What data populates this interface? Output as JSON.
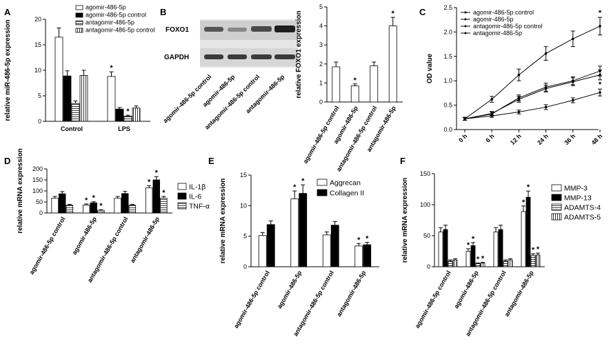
{
  "panel_labels": {
    "A": "A",
    "B": "B",
    "C": "C",
    "D": "D",
    "E": "E",
    "F": "F"
  },
  "chart_data": [
    {
      "id": "A",
      "type": "bar",
      "ylabel": "relative miR-486-5p expression",
      "ylim": [
        0,
        20
      ],
      "yticks": [
        0,
        5,
        10,
        15,
        20
      ],
      "categories": [
        "Control",
        "LPS"
      ],
      "series": [
        {
          "name": "agomir-486-5p",
          "values": [
            16.5,
            8.8
          ],
          "errors": [
            1.8,
            0.9
          ],
          "pattern": "white",
          "star": [
            false,
            true
          ]
        },
        {
          "name": "agomir-486-5p control",
          "values": [
            8.9,
            2.4
          ],
          "errors": [
            1.0,
            0.3
          ],
          "pattern": "black",
          "star": [
            false,
            false
          ]
        },
        {
          "name": "antagomir-486-5p",
          "values": [
            3.5,
            1.0
          ],
          "errors": [
            0.5,
            0.2
          ],
          "pattern": "hstripe",
          "star": [
            false,
            true
          ]
        },
        {
          "name": "antagomir-486-5p control",
          "values": [
            9.0,
            2.6
          ],
          "errors": [
            1.0,
            0.4
          ],
          "pattern": "vstripe",
          "star": [
            false,
            false
          ]
        }
      ]
    },
    {
      "id": "B",
      "type": "bar",
      "ylabel": "relative FOXO1 expression",
      "ylim": [
        0,
        5
      ],
      "yticks": [
        0,
        1,
        2,
        3,
        4,
        5
      ],
      "categories": [
        "agomir-486-5p control",
        "agomir-486-5p",
        "antagomir-486-5p control",
        "antagomir-486-5p"
      ],
      "values": [
        1.85,
        0.85,
        1.9,
        4.0
      ],
      "errors": [
        0.25,
        0.1,
        0.2,
        0.45
      ],
      "star": [
        false,
        true,
        false,
        true
      ],
      "blot": {
        "rows": [
          "FOXO1",
          "GAPDH"
        ],
        "lanes": [
          "agomir-486-5p control",
          "agomir-486-5p",
          "antagomir-486-5p control",
          "antagomir-486-5p"
        ]
      }
    },
    {
      "id": "C",
      "type": "line",
      "ylabel": "OD value",
      "ylim": [
        0,
        2.5
      ],
      "yticks": [
        0.0,
        0.5,
        1.0,
        1.5,
        2.0,
        2.5
      ],
      "x": [
        "0 h",
        "6 h",
        "12 h",
        "24 h",
        "36 h",
        "48 h"
      ],
      "series": [
        {
          "name": "agomir-486-5p control",
          "values": [
            0.22,
            0.32,
            0.65,
            0.87,
            1.0,
            1.2
          ],
          "errors": [
            0.03,
            0.04,
            0.06,
            0.08,
            0.08,
            0.1
          ]
        },
        {
          "name": "agomir-486-5p",
          "values": [
            0.22,
            0.28,
            0.36,
            0.46,
            0.6,
            0.76
          ],
          "errors": [
            0.03,
            0.03,
            0.04,
            0.05,
            0.05,
            0.07
          ],
          "star_last": true
        },
        {
          "name": "antagomir-486-5p control",
          "values": [
            0.22,
            0.33,
            0.62,
            0.84,
            0.98,
            1.12
          ],
          "errors": [
            0.03,
            0.04,
            0.06,
            0.07,
            0.08,
            0.1
          ]
        },
        {
          "name": "antagomir-486-5p",
          "values": [
            0.22,
            0.62,
            1.12,
            1.56,
            1.86,
            2.12
          ],
          "errors": [
            0.03,
            0.06,
            0.12,
            0.14,
            0.16,
            0.18
          ],
          "star_last": true
        }
      ]
    },
    {
      "id": "D",
      "type": "bar",
      "ylabel": "relative mRNA expression",
      "ylim": [
        0,
        200
      ],
      "yticks": [
        0,
        50,
        100,
        150,
        200
      ],
      "categories": [
        "agomir-486-5p control",
        "agomir-486-5p",
        "antagomir-486-5p control",
        "antagomir-486-5p"
      ],
      "series": [
        {
          "name": "IL-1β",
          "values": [
            67,
            36,
            67,
            114
          ],
          "errors": [
            8,
            5,
            8,
            10
          ],
          "pattern": "white",
          "star": [
            false,
            true,
            false,
            true
          ]
        },
        {
          "name": "IL-6",
          "values": [
            87,
            46,
            88,
            150
          ],
          "errors": [
            10,
            5,
            10,
            15
          ],
          "pattern": "black",
          "star": [
            false,
            true,
            false,
            true
          ]
        },
        {
          "name": "TNF-α",
          "values": [
            35,
            12,
            35,
            67
          ],
          "errors": [
            4,
            3,
            4,
            8
          ],
          "pattern": "hstripe",
          "star": [
            false,
            true,
            false,
            true
          ]
        }
      ]
    },
    {
      "id": "E",
      "type": "bar",
      "ylabel": "relative mRNA expression",
      "ylim": [
        0,
        15
      ],
      "yticks": [
        0,
        5,
        10,
        15
      ],
      "categories": [
        "agomir-486-5p control",
        "agomir-486-5p",
        "antagomir-486-5p control",
        "antagomir-486-5p"
      ],
      "series": [
        {
          "name": "Aggrecan",
          "values": [
            5.1,
            11.1,
            5.2,
            3.4
          ],
          "errors": [
            0.5,
            1.3,
            0.5,
            0.4
          ],
          "pattern": "white",
          "star": [
            false,
            true,
            false,
            true
          ]
        },
        {
          "name": "Collagen II",
          "values": [
            6.9,
            12.0,
            6.8,
            3.6
          ],
          "errors": [
            0.6,
            1.4,
            0.6,
            0.4
          ],
          "pattern": "black",
          "star": [
            false,
            true,
            false,
            true
          ]
        }
      ]
    },
    {
      "id": "F",
      "type": "bar",
      "ylabel": "relative mRNA expression",
      "ylim": [
        0,
        150
      ],
      "yticks": [
        0,
        50,
        100,
        150
      ],
      "categories": [
        "agomir-486-5p control",
        "agomir-486-5p",
        "antagomir-486-5p control",
        "antagomir-486-5p"
      ],
      "series": [
        {
          "name": "MMP-3",
          "values": [
            56,
            25,
            56,
            89
          ],
          "errors": [
            7,
            4,
            7,
            9
          ],
          "pattern": "white",
          "star": [
            false,
            true,
            false,
            true
          ]
        },
        {
          "name": "MMP-13",
          "values": [
            60,
            34,
            60,
            112
          ],
          "errors": [
            7,
            5,
            7,
            10
          ],
          "pattern": "black",
          "star": [
            false,
            true,
            false,
            true
          ]
        },
        {
          "name": "ADAMTS-4",
          "values": [
            9,
            5,
            9,
            18
          ],
          "errors": [
            2,
            1,
            2,
            3
          ],
          "pattern": "hstripe",
          "star": [
            false,
            true,
            false,
            true
          ]
        },
        {
          "name": "ADAMTS-5",
          "values": [
            11,
            6,
            11,
            19
          ],
          "errors": [
            2,
            1,
            2,
            3
          ],
          "pattern": "vstripe",
          "star": [
            false,
            true,
            false,
            true
          ]
        }
      ]
    }
  ]
}
